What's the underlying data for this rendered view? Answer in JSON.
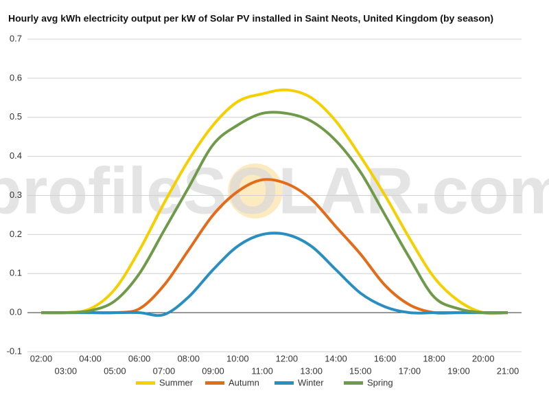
{
  "chart_data": {
    "type": "line",
    "title": "Hourly avg kWh electricity output per kW of Solar PV installed in Saint Neots, United Kingdom (by season)",
    "watermark": "profileSOLAR.com",
    "categories": [
      "02:00",
      "03:00",
      "04:00",
      "05:00",
      "06:00",
      "07:00",
      "08:00",
      "09:00",
      "10:00",
      "11:00",
      "12:00",
      "13:00",
      "14:00",
      "15:00",
      "16:00",
      "17:00",
      "18:00",
      "19:00",
      "20:00",
      "21:00"
    ],
    "series": [
      {
        "name": "Summer",
        "color": "#f5d000",
        "values": [
          0,
          0,
          0.01,
          0.06,
          0.16,
          0.28,
          0.39,
          0.48,
          0.54,
          0.56,
          0.57,
          0.55,
          0.49,
          0.4,
          0.3,
          0.19,
          0.09,
          0.03,
          0,
          0
        ]
      },
      {
        "name": "Autumn",
        "color": "#e36c1a",
        "values": [
          0,
          0,
          0,
          0,
          0.01,
          0.07,
          0.16,
          0.25,
          0.31,
          0.34,
          0.33,
          0.29,
          0.22,
          0.15,
          0.07,
          0.02,
          0,
          0,
          0,
          0
        ]
      },
      {
        "name": "Winter",
        "color": "#2a8fc0",
        "values": [
          0,
          0,
          0,
          0,
          0,
          -0.005,
          0.04,
          0.11,
          0.17,
          0.2,
          0.2,
          0.17,
          0.11,
          0.05,
          0.015,
          0,
          0,
          0,
          0,
          0
        ]
      },
      {
        "name": "Spring",
        "color": "#6f9a4a",
        "values": [
          0,
          0,
          0.005,
          0.03,
          0.1,
          0.21,
          0.32,
          0.43,
          0.48,
          0.51,
          0.51,
          0.49,
          0.44,
          0.36,
          0.25,
          0.14,
          0.04,
          0.01,
          0,
          0
        ]
      }
    ],
    "ylim": [
      -0.1,
      0.7
    ],
    "yticks": [
      -0.1,
      {
        "value": 0,
        "label": "0.0"
      },
      0.1,
      0.2,
      0.3,
      0.4,
      0.5,
      0.6,
      0.7
    ],
    "grid": true,
    "legend": "bottom"
  }
}
